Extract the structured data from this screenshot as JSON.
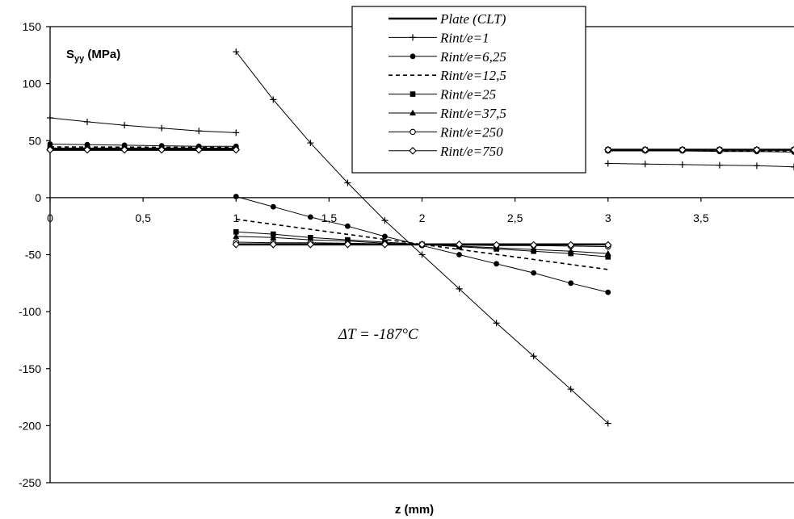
{
  "chart_data": {
    "type": "line",
    "ylabel_main": "S",
    "ylabel_sub": "yy",
    "ylabel_unit": " (MPa)",
    "xlabel": "z (mm)",
    "xlim": [
      0,
      4
    ],
    "ylim": [
      -250,
      150
    ],
    "x_ticks": [
      {
        "value": 0,
        "label": "0"
      },
      {
        "value": 0.5,
        "label": "0,5"
      },
      {
        "value": 1,
        "label": "1"
      },
      {
        "value": 1.5,
        "label": "1,5"
      },
      {
        "value": 2,
        "label": "2"
      },
      {
        "value": 2.5,
        "label": "2,5"
      },
      {
        "value": 3,
        "label": "3"
      },
      {
        "value": 3.5,
        "label": "3,5"
      }
    ],
    "y_ticks": [
      {
        "value": 150,
        "label": "150"
      },
      {
        "value": 100,
        "label": "100"
      },
      {
        "value": 50,
        "label": "50"
      },
      {
        "value": 0,
        "label": "0"
      },
      {
        "value": -50,
        "label": "-50"
      },
      {
        "value": -100,
        "label": "-100"
      },
      {
        "value": -150,
        "label": "-150"
      },
      {
        "value": -200,
        "label": "-200"
      },
      {
        "value": -250,
        "label": "-250"
      }
    ],
    "annotation": {
      "text": "ΔT = -187°C",
      "x": 1.55,
      "y": -124
    },
    "legend_position": "top-center",
    "series": [
      {
        "name": "Plate (CLT)",
        "style": "solid",
        "width": 2.6,
        "marker": "none",
        "segments": [
          {
            "x": [
              0,
              1
            ],
            "y": [
              42,
              42
            ]
          },
          {
            "x": [
              1,
              3
            ],
            "y": [
              -41,
              -41
            ]
          },
          {
            "x": [
              3,
              4
            ],
            "y": [
              42,
              42
            ]
          }
        ]
      },
      {
        "name": "Rint/e=1",
        "style": "solid",
        "width": 1,
        "marker": "plus",
        "segments": [
          {
            "x": [
              0,
              0.2,
              0.4,
              0.6,
              0.8,
              1
            ],
            "y": [
              70,
              66.5,
              63.5,
              61,
              58.5,
              57
            ]
          },
          {
            "x": [
              1,
              1.2,
              1.4,
              1.6,
              1.8,
              2,
              2.2,
              2.4,
              2.6,
              2.8,
              3
            ],
            "y": [
              128,
              86,
              48,
              13,
              -20,
              -50,
              -80,
              -110,
              -139,
              -168,
              -198
            ]
          },
          {
            "x": [
              3,
              3.2,
              3.4,
              3.6,
              3.8,
              4
            ],
            "y": [
              30,
              29.5,
              29,
              28.5,
              28,
              27
            ]
          }
        ]
      },
      {
        "name": "Rint/e=6,25",
        "style": "solid",
        "width": 1,
        "marker": "dot",
        "segments": [
          {
            "x": [
              0,
              0.2,
              0.4,
              0.6,
              0.8,
              1
            ],
            "y": [
              47,
              46.5,
              46,
              45.5,
              45,
              45
            ]
          },
          {
            "x": [
              1,
              1.2,
              1.4,
              1.6,
              1.8,
              2,
              2.2,
              2.4,
              2.6,
              2.8,
              3
            ],
            "y": [
              1,
              -8,
              -17,
              -25,
              -34,
              -42,
              -50,
              -58,
              -66,
              -75,
              -83
            ]
          },
          {
            "x": [
              3,
              3.2,
              3.4,
              3.6,
              3.8,
              4
            ],
            "y": [
              41,
              41,
              41,
              40.5,
              40.5,
              40
            ]
          }
        ]
      },
      {
        "name": "Rint/e=12,5",
        "style": "dashed",
        "width": 1.6,
        "marker": "none",
        "segments": [
          {
            "x": [
              0,
              1
            ],
            "y": [
              44.5,
              44
            ]
          },
          {
            "x": [
              1,
              3
            ],
            "y": [
              -19,
              -63
            ]
          },
          {
            "x": [
              3,
              4
            ],
            "y": [
              41.5,
              41
            ]
          }
        ]
      },
      {
        "name": "Rint/e=25",
        "style": "solid",
        "width": 1,
        "marker": "square",
        "segments": [
          {
            "x": [
              0,
              0.2,
              0.4,
              0.6,
              0.8,
              1
            ],
            "y": [
              43.5,
              43.5,
              43.5,
              43.5,
              43.5,
              43.5
            ]
          },
          {
            "x": [
              1,
              1.2,
              1.4,
              1.6,
              1.8,
              2,
              2.2,
              2.4,
              2.6,
              2.8,
              3
            ],
            "y": [
              -30,
              -32,
              -35,
              -37,
              -39,
              -41,
              -43,
              -45,
              -47,
              -49,
              -52
            ]
          },
          {
            "x": [
              3,
              3.2,
              3.4,
              3.6,
              3.8,
              4
            ],
            "y": [
              42,
              42,
              42,
              42,
              42,
              42
            ]
          }
        ]
      },
      {
        "name": "Rint/e=37,5",
        "style": "solid",
        "width": 1,
        "marker": "triangle",
        "segments": [
          {
            "x": [
              0,
              0.2,
              0.4,
              0.6,
              0.8,
              1
            ],
            "y": [
              43,
              43,
              43,
              43,
              43,
              43
            ]
          },
          {
            "x": [
              1,
              1.2,
              1.4,
              1.6,
              1.8,
              2,
              2.2,
              2.4,
              2.6,
              2.8,
              3
            ],
            "y": [
              -34,
              -35,
              -37,
              -38,
              -40,
              -41,
              -42.5,
              -44,
              -45.5,
              -47,
              -49
            ]
          },
          {
            "x": [
              3,
              3.2,
              3.4,
              3.6,
              3.8,
              4
            ],
            "y": [
              42,
              42,
              42,
              42,
              42,
              42
            ]
          }
        ]
      },
      {
        "name": "Rint/e=250",
        "style": "solid",
        "width": 1,
        "marker": "circle-open",
        "segments": [
          {
            "x": [
              0,
              0.2,
              0.4,
              0.6,
              0.8,
              1
            ],
            "y": [
              42.5,
              42.5,
              42.5,
              42.5,
              42.5,
              42.5
            ]
          },
          {
            "x": [
              1,
              1.2,
              1.4,
              1.6,
              1.8,
              2,
              2.2,
              2.4,
              2.6,
              2.8,
              3
            ],
            "y": [
              -39,
              -39.5,
              -39.5,
              -40,
              -40.5,
              -41,
              -41.5,
              -42,
              -42,
              -42.5,
              -43
            ]
          },
          {
            "x": [
              3,
              3.2,
              3.4,
              3.6,
              3.8,
              4
            ],
            "y": [
              42,
              42,
              42,
              42,
              42,
              42
            ]
          }
        ]
      },
      {
        "name": "Rint/e=750",
        "style": "solid",
        "width": 1,
        "marker": "diamond-open",
        "segments": [
          {
            "x": [
              0,
              0.2,
              0.4,
              0.6,
              0.8,
              1
            ],
            "y": [
              42,
              42,
              42,
              42,
              42,
              42
            ]
          },
          {
            "x": [
              1,
              1.2,
              1.4,
              1.6,
              1.8,
              2,
              2.2,
              2.4,
              2.6,
              2.8,
              3
            ],
            "y": [
              -41,
              -41,
              -41,
              -41,
              -41,
              -41,
              -41,
              -41.5,
              -41.5,
              -41.5,
              -41.5
            ]
          },
          {
            "x": [
              3,
              3.2,
              3.4,
              3.6,
              3.8,
              4
            ],
            "y": [
              42,
              42,
              42,
              42,
              42,
              42
            ]
          }
        ]
      }
    ]
  }
}
